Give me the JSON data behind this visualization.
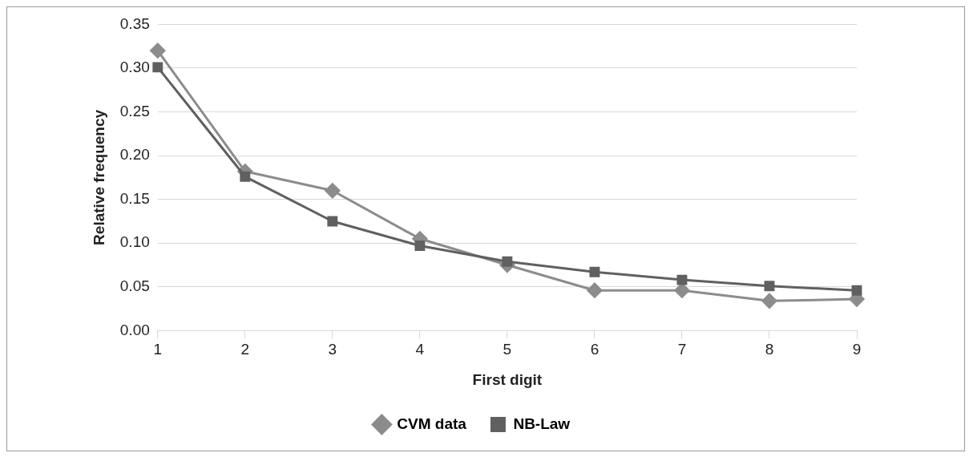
{
  "chart_data": {
    "type": "line",
    "xlabel": "First digit",
    "ylabel": "Relative frequency",
    "categories": [
      "1",
      "2",
      "3",
      "4",
      "5",
      "6",
      "7",
      "8",
      "9"
    ],
    "series": [
      {
        "name": "CVM data",
        "color": "#8c8c8c",
        "marker": "diamond",
        "values": [
          0.32,
          0.182,
          0.16,
          0.105,
          0.075,
          0.046,
          0.046,
          0.034,
          0.036
        ]
      },
      {
        "name": "NB-Law",
        "color": "#606060",
        "marker": "square",
        "values": [
          0.301,
          0.176,
          0.125,
          0.097,
          0.079,
          0.067,
          0.058,
          0.051,
          0.046
        ]
      }
    ],
    "ylim": [
      0,
      0.35
    ],
    "yticks": [
      {
        "value": 0,
        "label": "0.00"
      },
      {
        "value": 0.05,
        "label": "0.05"
      },
      {
        "value": 0.1,
        "label": "0.10"
      },
      {
        "value": 0.15,
        "label": "0.15"
      },
      {
        "value": 0.2,
        "label": "0.20"
      },
      {
        "value": 0.25,
        "label": "0.25"
      },
      {
        "value": 0.3,
        "label": "0.30"
      },
      {
        "value": 0.35,
        "label": "0.35"
      }
    ],
    "grid": "y",
    "legend": "bottom"
  }
}
